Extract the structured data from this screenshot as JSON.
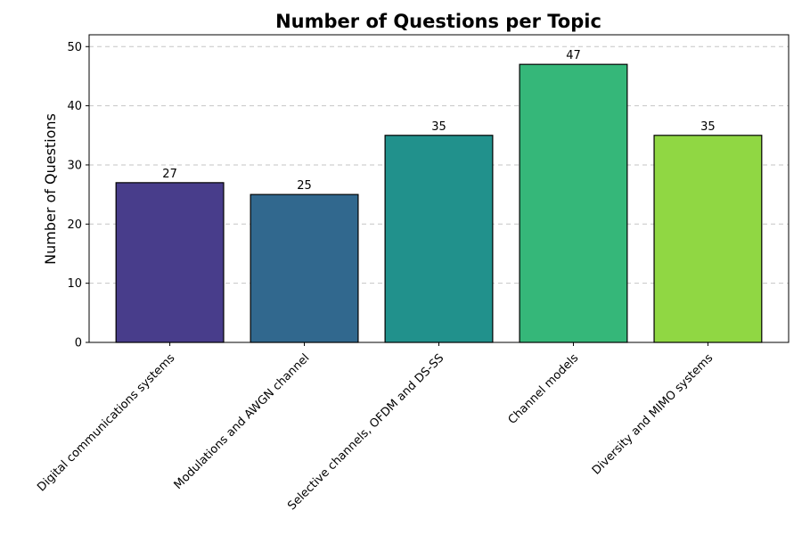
{
  "chart_data": {
    "type": "bar",
    "title": "Number of Questions per Topic",
    "xlabel": "",
    "ylabel": "Number of Questions",
    "categories": [
      "Digital communications systems",
      "Modulations and AWGN channel",
      "Selective channels, OFDM and DS-SS",
      "Channel models",
      "Diversity and MIMO systems"
    ],
    "values": [
      27,
      25,
      35,
      47,
      35
    ],
    "colors": [
      "#483d8b",
      "#31688e",
      "#21918c",
      "#35b779",
      "#90d743"
    ],
    "ylim": [
      0,
      52
    ],
    "yticks": [
      0,
      10,
      20,
      30,
      40,
      50
    ],
    "grid": "y-dashed",
    "legend": "none"
  }
}
